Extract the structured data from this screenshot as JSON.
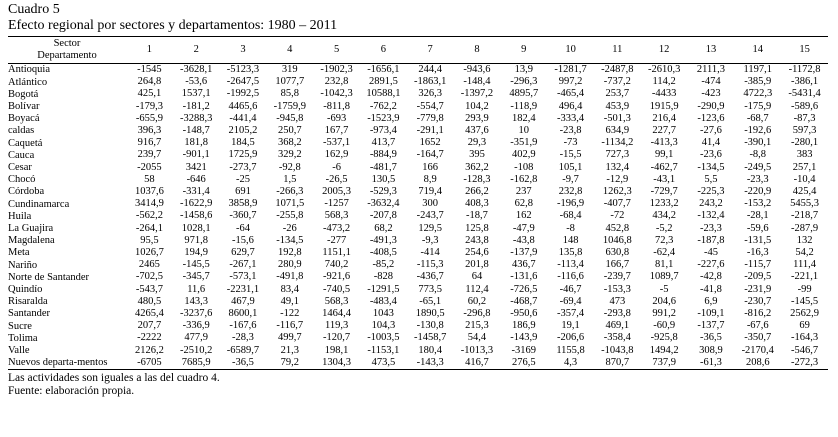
{
  "title": "Cuadro 5",
  "subtitle": "Efecto regional por sectores y departamentos: 1980 – 2011",
  "table": {
    "corner_top": "Sector",
    "corner_bottom": "Departamento",
    "columns": [
      "1",
      "2",
      "3",
      "4",
      "5",
      "6",
      "7",
      "8",
      "9",
      "10",
      "11",
      "12",
      "13",
      "14",
      "15"
    ],
    "rows": [
      {
        "label": "Antioquia",
        "cells": [
          "-1545",
          "-3628,1",
          "-5123,3",
          "319",
          "-1902,3",
          "-1656,1",
          "244,4",
          "-943,6",
          "13,9",
          "-1281,7",
          "-2487,8",
          "-2610,3",
          "2111,3",
          "1197,1",
          "-1172,8"
        ]
      },
      {
        "label": "Atlántico",
        "cells": [
          "264,8",
          "-53,6",
          "-2647,5",
          "1077,7",
          "232,8",
          "2891,5",
          "-1863,1",
          "-148,4",
          "-296,3",
          "997,2",
          "-737,2",
          "114,2",
          "-474",
          "-385,9",
          "-386,1"
        ]
      },
      {
        "label": "Bogotá",
        "cells": [
          "425,1",
          "1537,1",
          "-1992,5",
          "85,8",
          "-1042,3",
          "10588,1",
          "326,3",
          "-1397,2",
          "4895,7",
          "-465,4",
          "253,7",
          "-4433",
          "-423",
          "4722,3",
          "-5431,4"
        ]
      },
      {
        "label": "Bolívar",
        "cells": [
          "-179,3",
          "-181,2",
          "4465,6",
          "-1759,9",
          "-811,8",
          "-762,2",
          "-554,7",
          "104,2",
          "-118,9",
          "496,4",
          "453,9",
          "1915,9",
          "-290,9",
          "-175,9",
          "-589,6"
        ]
      },
      {
        "label": "Boyacá",
        "cells": [
          "-655,9",
          "-3288,3",
          "-441,4",
          "-945,8",
          "-693",
          "-1523,9",
          "-779,8",
          "293,9",
          "182,4",
          "-333,4",
          "-501,3",
          "216,4",
          "-123,6",
          "-68,7",
          "-87,3"
        ]
      },
      {
        "label": "caldas",
        "cells": [
          "396,3",
          "-148,7",
          "2105,2",
          "250,7",
          "167,7",
          "-973,4",
          "-291,1",
          "437,6",
          "10",
          "-23,8",
          "634,9",
          "227,7",
          "-27,6",
          "-192,6",
          "597,3"
        ]
      },
      {
        "label": "Caquetá",
        "cells": [
          "916,7",
          "181,8",
          "184,5",
          "368,2",
          "-537,1",
          "413,7",
          "1652",
          "29,3",
          "-351,9",
          "-73",
          "-1134,2",
          "-413,3",
          "41,4",
          "-390,1",
          "-280,1"
        ]
      },
      {
        "label": "Cauca",
        "cells": [
          "239,7",
          "-901,1",
          "1725,9",
          "329,2",
          "162,9",
          "-884,9",
          "-164,7",
          "395",
          "402,9",
          "-15,5",
          "727,3",
          "99,1",
          "-23,6",
          "-8,8",
          "383"
        ]
      },
      {
        "label": "Cesar",
        "cells": [
          "-2055",
          "3421",
          "-273,7",
          "-92,8",
          "-6",
          "-481,7",
          "166",
          "362,2",
          "-108",
          "105,1",
          "132,4",
          "-462,7",
          "-134,5",
          "-249,5",
          "257,1"
        ]
      },
      {
        "label": "Chocó",
        "cells": [
          "58",
          "-646",
          "-25",
          "1,5",
          "-26,5",
          "130,5",
          "8,9",
          "-128,3",
          "-162,8",
          "-9,7",
          "-12,9",
          "-43,1",
          "5,5",
          "-23,3",
          "-10,4"
        ]
      },
      {
        "label": "Córdoba",
        "cells": [
          "1037,6",
          "-331,4",
          "691",
          "-266,3",
          "2005,3",
          "-529,3",
          "719,4",
          "266,2",
          "237",
          "232,8",
          "1262,3",
          "-729,7",
          "-225,3",
          "-220,9",
          "425,4"
        ]
      },
      {
        "label": "Cundinamarca",
        "cells": [
          "3414,9",
          "-1622,9",
          "3858,9",
          "1071,5",
          "-1257",
          "-3632,4",
          "300",
          "408,3",
          "62,8",
          "-196,9",
          "-407,7",
          "1233,2",
          "243,2",
          "-153,2",
          "5455,3"
        ]
      },
      {
        "label": "Huila",
        "cells": [
          "-562,2",
          "-1458,6",
          "-360,7",
          "-255,8",
          "568,3",
          "-207,8",
          "-243,7",
          "-18,7",
          "162",
          "-68,4",
          "-72",
          "434,2",
          "-132,4",
          "-28,1",
          "-218,7"
        ]
      },
      {
        "label": "La Guajira",
        "cells": [
          "-264,1",
          "1028,1",
          "-64",
          "-26",
          "-473,2",
          "68,2",
          "129,5",
          "125,8",
          "-47,9",
          "-8",
          "452,8",
          "-5,2",
          "-23,3",
          "-59,6",
          "-287,9"
        ]
      },
      {
        "label": "Magdalena",
        "cells": [
          "95,5",
          "971,8",
          "-15,6",
          "-134,5",
          "-277",
          "-491,3",
          "-9,3",
          "243,8",
          "-43,8",
          "148",
          "1046,8",
          "72,3",
          "-187,8",
          "-131,5",
          "132"
        ]
      },
      {
        "label": "Meta",
        "cells": [
          "1026,7",
          "194,9",
          "629,7",
          "192,8",
          "1151,1",
          "-408,5",
          "-414",
          "254,6",
          "-137,9",
          "135,8",
          "630,8",
          "-62,4",
          "-45",
          "-16,3",
          "54,2"
        ]
      },
      {
        "label": "Nariño",
        "cells": [
          "2465",
          "-145,5",
          "-267,1",
          "280,9",
          "740,2",
          "-85,2",
          "-115,3",
          "201,8",
          "436,7",
          "-113,4",
          "166,7",
          "81,1",
          "-227,6",
          "-115,7",
          "111,4"
        ]
      },
      {
        "label": "Norte de Santander",
        "cells": [
          "-702,5",
          "-345,7",
          "-573,1",
          "-491,8",
          "-921,6",
          "-828",
          "-436,7",
          "64",
          "-131,6",
          "-116,6",
          "-239,7",
          "1089,7",
          "-42,8",
          "-209,5",
          "-221,1"
        ]
      },
      {
        "label": "Quindío",
        "cells": [
          "-543,7",
          "11,6",
          "-2231,1",
          "83,4",
          "-740,5",
          "-1291,5",
          "773,5",
          "112,4",
          "-726,5",
          "-46,7",
          "-153,3",
          "-5",
          "-41,8",
          "-231,9",
          "-99"
        ]
      },
      {
        "label": "Risaralda",
        "cells": [
          "480,5",
          "143,3",
          "467,9",
          "49,1",
          "568,3",
          "-483,4",
          "-65,1",
          "60,2",
          "-468,7",
          "-69,4",
          "473",
          "204,6",
          "6,9",
          "-230,7",
          "-145,5"
        ]
      },
      {
        "label": "Santander",
        "cells": [
          "4265,4",
          "-3237,6",
          "8600,1",
          "-122",
          "1464,4",
          "1043",
          "1890,5",
          "-296,8",
          "-950,6",
          "-357,4",
          "-293,8",
          "991,2",
          "-109,1",
          "-816,2",
          "2562,9"
        ]
      },
      {
        "label": "Sucre",
        "cells": [
          "207,7",
          "-336,9",
          "-167,6",
          "-116,7",
          "119,3",
          "104,3",
          "-130,8",
          "215,3",
          "186,9",
          "19,1",
          "469,1",
          "-60,9",
          "-137,7",
          "-67,6",
          "69"
        ]
      },
      {
        "label": "Tolima",
        "cells": [
          "-2222",
          "477,9",
          "-28,3",
          "499,7",
          "-120,7",
          "-1003,5",
          "-1458,7",
          "54,4",
          "-143,9",
          "-206,6",
          "-358,4",
          "-925,8",
          "-36,5",
          "-350,7",
          "-164,3"
        ]
      },
      {
        "label": "Valle",
        "cells": [
          "2126,2",
          "-2510,2",
          "-6589,7",
          "21,3",
          "198,1",
          "-1153,1",
          "180,4",
          "-1013,3",
          "-3169",
          "1155,8",
          "-1043,8",
          "1494,2",
          "308,9",
          "-2170,4",
          "-546,7"
        ]
      },
      {
        "label": "Nuevos departa-mentos",
        "cells": [
          "-6705",
          "7685,9",
          "-36,5",
          "79,2",
          "1304,3",
          "473,5",
          "-143,3",
          "416,7",
          "276,5",
          "4,3",
          "870,7",
          "737,9",
          "-61,3",
          "208,6",
          "-272,3"
        ]
      }
    ]
  },
  "notes": [
    "Las actividades son iguales a las del cuadro 4.",
    "Fuente: elaboración propia."
  ]
}
